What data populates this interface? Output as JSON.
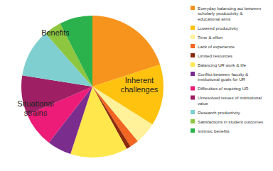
{
  "chart_data": {
    "type": "pie",
    "categories": [
      "Everyday balancing act between scholarly productivity & educational aims",
      "Lowered productivity",
      "Time & effort",
      "Lack of experience",
      "Limited resources",
      "Balancing UR work & life",
      "Conflict between faculty & institutional goals for UR",
      "Difficulties of requiring UR",
      "Unresolved issues of institutional value",
      "Research productivity",
      "Satisfactions in student outcomes",
      "Intrinsic benefits"
    ],
    "values": [
      20,
      14,
      5,
      2,
      1,
      13,
      5.5,
      8,
      9,
      11,
      4,
      7.5
    ],
    "colors": [
      "#f7941d",
      "#ffc20e",
      "#fff29a",
      "#f26522",
      "#8b2a0c",
      "#ffe74c",
      "#7b2d8e",
      "#ec1c78",
      "#9e1f63",
      "#7fcfd0",
      "#8dc63f",
      "#2bb24c"
    ],
    "legend": "right",
    "annotations": [
      "Inherent challenges",
      "Situational strains",
      "Benefits"
    ]
  }
}
